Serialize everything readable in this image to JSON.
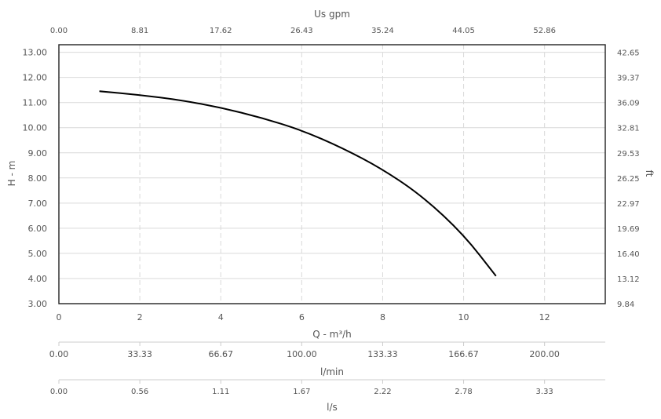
{
  "chart_data": {
    "type": "line",
    "x": [
      1.0,
      2.0,
      3.0,
      4.0,
      5.0,
      6.0,
      7.0,
      8.0,
      9.0,
      10.0,
      10.8
    ],
    "series": [
      {
        "values": [
          11.45,
          11.3,
          11.1,
          10.8,
          10.4,
          9.9,
          9.2,
          8.35,
          7.25,
          5.75,
          4.1
        ]
      }
    ],
    "xlabel": "Q - m³/h",
    "ylabel": "H - m",
    "xlim": [
      0,
      13.5
    ],
    "ylim": [
      3,
      13.3
    ],
    "x_ticks": [
      "0",
      "2",
      "4",
      "6",
      "8",
      "10",
      "12"
    ],
    "y_ticks": [
      "3.00",
      "4.00",
      "5.00",
      "6.00",
      "7.00",
      "8.00",
      "9.00",
      "10.00",
      "11.00",
      "12.00",
      "13.00"
    ],
    "top_axis": {
      "label": "Us gpm",
      "ticks": [
        "0.00",
        "8.81",
        "17.62",
        "26.43",
        "35.24",
        "44.05",
        "52.86"
      ]
    },
    "right_axis": {
      "label": "ft",
      "ticks": [
        "9.84",
        "13.12",
        "16.40",
        "19.69",
        "22.97",
        "26.25",
        "29.53",
        "32.81",
        "36.09",
        "39.37",
        "42.65"
      ]
    },
    "lmin_axis": {
      "label": "l/min",
      "ticks": [
        "0.00",
        "33.33",
        "66.67",
        "100.00",
        "133.33",
        "166.67",
        "200.00"
      ]
    },
    "ls_axis": {
      "label": "l/s",
      "ticks": [
        "0.00",
        "0.56",
        "1.11",
        "1.67",
        "2.22",
        "2.78",
        "3.33"
      ]
    },
    "grid": true,
    "colors": {
      "line": "#000000",
      "grid": "#d9d9d9",
      "frame": "#222222"
    }
  }
}
